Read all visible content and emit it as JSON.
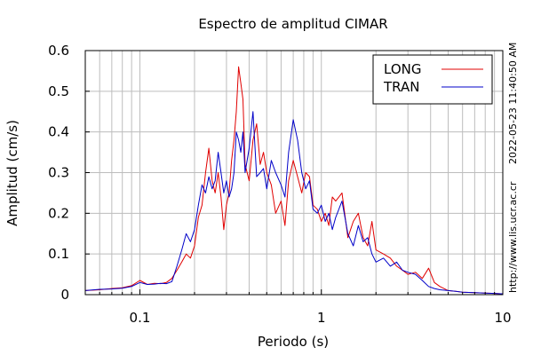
{
  "chart_data": {
    "type": "line",
    "title": "Espectro de amplitud CIMAR",
    "xlabel": "Periodo (s)",
    "ylabel": "Amplitud (cm/s)",
    "x_scale": "log",
    "xlim": [
      0.05,
      10
    ],
    "ylim": [
      0,
      0.6
    ],
    "x_ticks": [
      {
        "value": 0.1,
        "label": "0.1"
      },
      {
        "value": 1,
        "label": "1"
      },
      {
        "value": 10,
        "label": "10"
      }
    ],
    "y_ticks": [
      {
        "value": 0,
        "label": "0"
      },
      {
        "value": 0.1,
        "label": "0.1"
      },
      {
        "value": 0.2,
        "label": "0.2"
      },
      {
        "value": 0.3,
        "label": "0.3"
      },
      {
        "value": 0.4,
        "label": "0.4"
      },
      {
        "value": 0.5,
        "label": "0.5"
      },
      {
        "value": 0.6,
        "label": "0.6"
      }
    ],
    "grid": true,
    "legend_position": "top-right",
    "right_annotations": [
      "2022-05-23 11:40:50 AM",
      "http://www.lis.ucr.ac.cr"
    ],
    "series": [
      {
        "name": "LONG",
        "color": "#e00000",
        "x": [
          0.05,
          0.06,
          0.07,
          0.08,
          0.09,
          0.1,
          0.11,
          0.12,
          0.13,
          0.14,
          0.15,
          0.16,
          0.17,
          0.18,
          0.19,
          0.2,
          0.21,
          0.22,
          0.23,
          0.24,
          0.25,
          0.26,
          0.27,
          0.28,
          0.29,
          0.3,
          0.31,
          0.32,
          0.33,
          0.34,
          0.35,
          0.36,
          0.37,
          0.38,
          0.4,
          0.42,
          0.44,
          0.46,
          0.48,
          0.5,
          0.53,
          0.56,
          0.6,
          0.63,
          0.66,
          0.7,
          0.74,
          0.78,
          0.82,
          0.86,
          0.9,
          0.95,
          1.0,
          1.05,
          1.1,
          1.15,
          1.2,
          1.3,
          1.4,
          1.5,
          1.6,
          1.7,
          1.8,
          1.9,
          2.0,
          2.2,
          2.4,
          2.6,
          2.8,
          3.0,
          3.3,
          3.6,
          3.9,
          4.2,
          4.5,
          5.0,
          5.5,
          6.0,
          7.0,
          8.0,
          9.0,
          10.0
        ],
        "values": [
          0.01,
          0.012,
          0.015,
          0.017,
          0.022,
          0.035,
          0.025,
          0.028,
          0.027,
          0.03,
          0.04,
          0.06,
          0.08,
          0.1,
          0.09,
          0.12,
          0.19,
          0.22,
          0.3,
          0.36,
          0.28,
          0.25,
          0.3,
          0.24,
          0.16,
          0.22,
          0.25,
          0.33,
          0.38,
          0.45,
          0.56,
          0.52,
          0.48,
          0.32,
          0.28,
          0.38,
          0.42,
          0.32,
          0.35,
          0.3,
          0.27,
          0.2,
          0.23,
          0.17,
          0.28,
          0.33,
          0.29,
          0.25,
          0.3,
          0.29,
          0.22,
          0.21,
          0.18,
          0.2,
          0.17,
          0.24,
          0.23,
          0.25,
          0.14,
          0.18,
          0.2,
          0.14,
          0.12,
          0.18,
          0.11,
          0.1,
          0.09,
          0.07,
          0.06,
          0.05,
          0.055,
          0.04,
          0.065,
          0.03,
          0.02,
          0.01,
          0.008,
          0.006,
          0.005,
          0.004,
          0.003,
          0.002
        ]
      },
      {
        "name": "TRAN",
        "color": "#0000c8",
        "x": [
          0.05,
          0.06,
          0.07,
          0.08,
          0.09,
          0.1,
          0.11,
          0.12,
          0.13,
          0.14,
          0.15,
          0.16,
          0.17,
          0.18,
          0.19,
          0.2,
          0.21,
          0.22,
          0.23,
          0.24,
          0.25,
          0.26,
          0.27,
          0.28,
          0.29,
          0.3,
          0.31,
          0.32,
          0.33,
          0.34,
          0.35,
          0.36,
          0.37,
          0.38,
          0.4,
          0.42,
          0.44,
          0.46,
          0.48,
          0.5,
          0.53,
          0.56,
          0.6,
          0.63,
          0.66,
          0.7,
          0.74,
          0.78,
          0.82,
          0.86,
          0.9,
          0.95,
          1.0,
          1.05,
          1.1,
          1.15,
          1.2,
          1.3,
          1.4,
          1.5,
          1.6,
          1.7,
          1.8,
          1.9,
          2.0,
          2.2,
          2.4,
          2.6,
          2.8,
          3.0,
          3.3,
          3.6,
          3.9,
          4.2,
          4.5,
          5.0,
          5.5,
          6.0,
          7.0,
          8.0,
          9.0,
          10.0
        ],
        "values": [
          0.01,
          0.013,
          0.014,
          0.016,
          0.02,
          0.03,
          0.025,
          0.026,
          0.028,
          0.027,
          0.032,
          0.07,
          0.11,
          0.15,
          0.13,
          0.16,
          0.22,
          0.27,
          0.25,
          0.29,
          0.26,
          0.28,
          0.35,
          0.3,
          0.25,
          0.28,
          0.24,
          0.26,
          0.3,
          0.4,
          0.38,
          0.35,
          0.4,
          0.3,
          0.36,
          0.45,
          0.29,
          0.3,
          0.31,
          0.26,
          0.33,
          0.3,
          0.27,
          0.24,
          0.35,
          0.43,
          0.38,
          0.3,
          0.26,
          0.28,
          0.21,
          0.2,
          0.22,
          0.18,
          0.2,
          0.16,
          0.19,
          0.23,
          0.15,
          0.12,
          0.17,
          0.13,
          0.14,
          0.1,
          0.08,
          0.09,
          0.07,
          0.08,
          0.06,
          0.055,
          0.05,
          0.035,
          0.02,
          0.015,
          0.012,
          0.01,
          0.008,
          0.006,
          0.005,
          0.004,
          0.003,
          0.002
        ]
      }
    ]
  }
}
